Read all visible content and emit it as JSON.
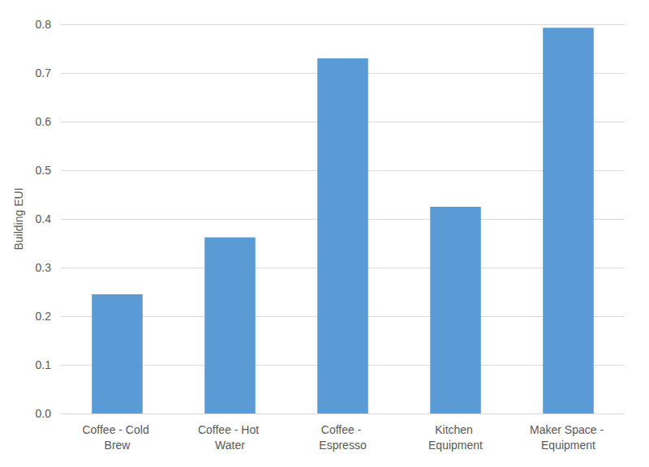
{
  "chart_data": {
    "type": "bar",
    "y_label": "Building EUI",
    "categories": [
      "Coffee - Cold Brew",
      "Coffee - Hot Water",
      "Coffee - Espresso",
      "Kitchen Equipment",
      "Maker Space - Equipment"
    ],
    "values": [
      0.245,
      0.362,
      0.73,
      0.425,
      0.793
    ],
    "color": "#5b9bd5",
    "ylim": [
      0,
      0.8
    ],
    "yticks": [
      {
        "value": 0,
        "label": "0.0"
      },
      0.1,
      0.2,
      0.3,
      0.4,
      0.5,
      0.6,
      0.7,
      0.8
    ],
    "grid": true
  }
}
